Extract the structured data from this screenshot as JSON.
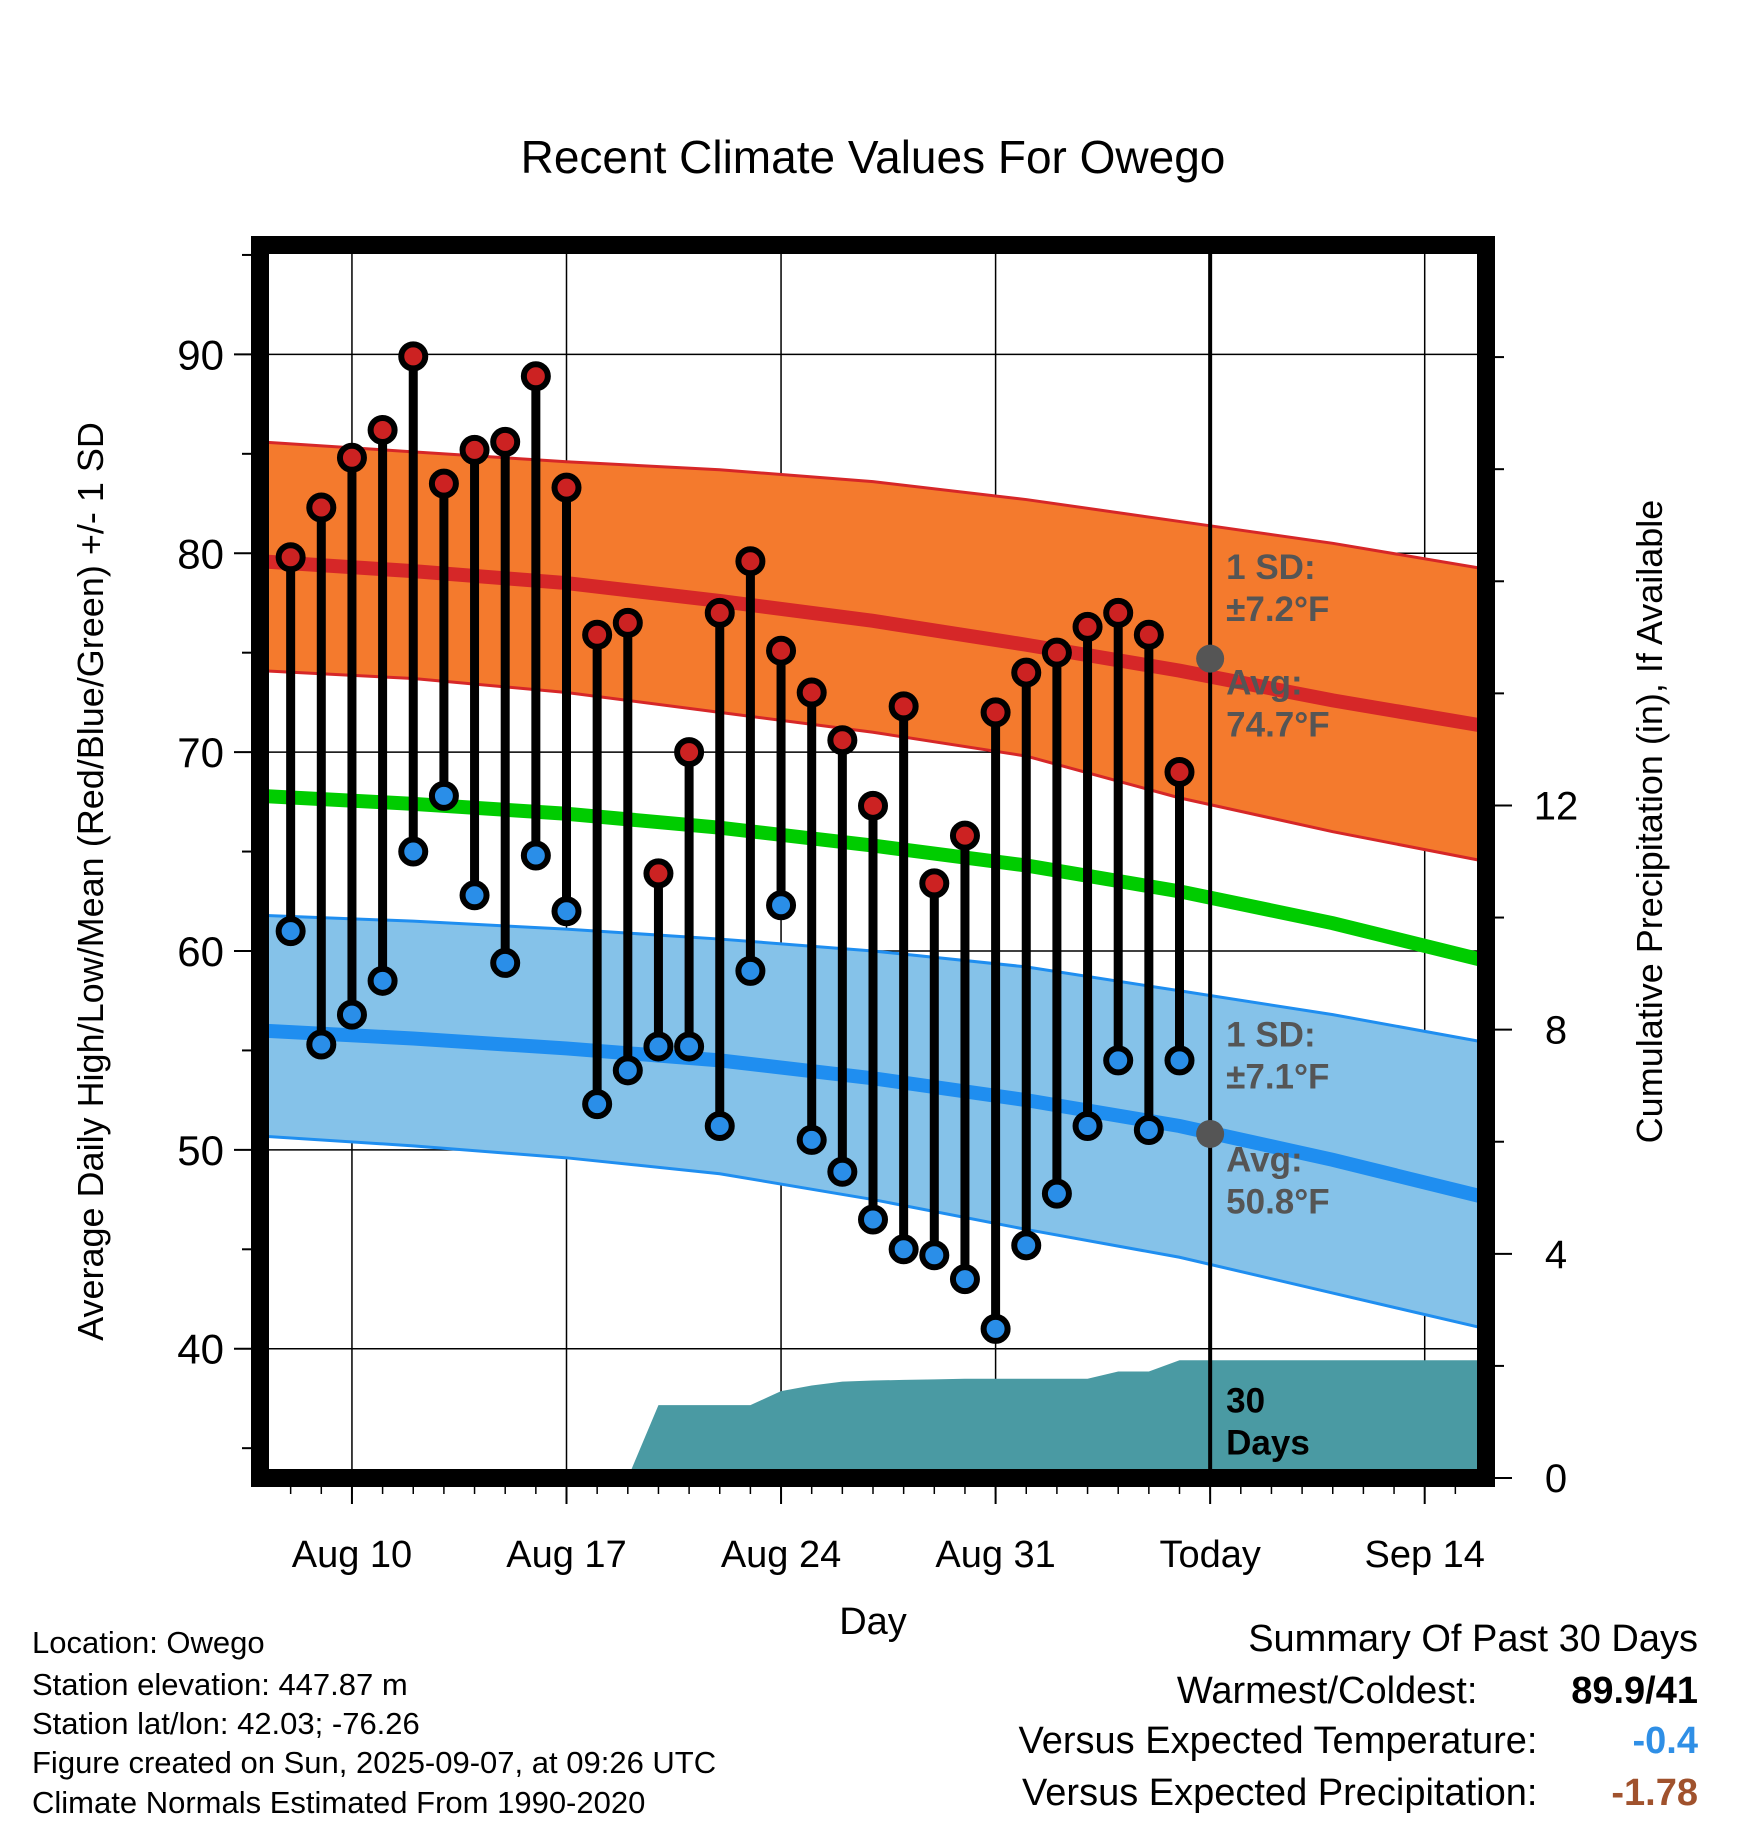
{
  "chart_data": {
    "type": "line",
    "title": "Recent Climate Values For Owego",
    "xlabel": "Day",
    "ylabel": "Average Daily High/Low/Mean (Red/Blue/Green) +/- 1 SD",
    "y2label": "Cumulative Precipitation (in), If Available",
    "x_ticks": [
      "Aug 10",
      "Aug 17",
      "Aug 24",
      "Aug 31",
      "Today",
      "Sep 14"
    ],
    "x_start": "Aug 7",
    "x_end": "Sep 16",
    "ylim": [
      33.5,
      95.5
    ],
    "yticks": [
      40,
      50,
      60,
      70,
      80,
      90
    ],
    "y2lim": [
      0,
      22
    ],
    "y2ticks": [
      0,
      4,
      8,
      12
    ],
    "days": [
      "Aug 8",
      "Aug 9",
      "Aug 10",
      "Aug 11",
      "Aug 12",
      "Aug 13",
      "Aug 14",
      "Aug 15",
      "Aug 16",
      "Aug 17",
      "Aug 18",
      "Aug 19",
      "Aug 20",
      "Aug 21",
      "Aug 22",
      "Aug 23",
      "Aug 24",
      "Aug 25",
      "Aug 26",
      "Aug 27",
      "Aug 28",
      "Aug 29",
      "Aug 30",
      "Aug 31",
      "Sep 1",
      "Sep 2",
      "Sep 3",
      "Sep 4",
      "Sep 5",
      "Sep 6"
    ],
    "high": [
      79.8,
      82.3,
      84.8,
      86.2,
      89.9,
      83.5,
      85.2,
      85.6,
      88.9,
      83.3,
      75.9,
      76.5,
      63.9,
      70.0,
      77.0,
      79.6,
      75.1,
      73.0,
      70.6,
      67.3,
      72.3,
      63.4,
      65.8,
      72.0,
      74.0,
      75.0,
      76.3,
      77.0,
      75.9,
      69.0
    ],
    "low": [
      61.0,
      55.3,
      56.8,
      58.5,
      65.0,
      67.8,
      62.8,
      59.4,
      64.8,
      62.0,
      52.3,
      54.0,
      55.2,
      55.2,
      51.2,
      59.0,
      62.3,
      50.5,
      48.9,
      46.5,
      45.0,
      44.7,
      43.5,
      41.0,
      45.2,
      47.8,
      51.2,
      54.5,
      51.0,
      54.5
    ],
    "normals": {
      "x": [
        "Aug 7",
        "Aug 12",
        "Aug 17",
        "Aug 22",
        "Aug 27",
        "Sep 1",
        "Sep 6",
        "Sep 11",
        "Sep 16"
      ],
      "high_avg": [
        79.6,
        79.1,
        78.5,
        77.6,
        76.6,
        75.4,
        74.1,
        72.6,
        71.3
      ],
      "high_upper": [
        85.6,
        85.1,
        84.6,
        84.2,
        83.6,
        82.7,
        81.6,
        80.5,
        79.2
      ],
      "high_lower": [
        74.1,
        73.7,
        73.0,
        72.0,
        71.0,
        69.8,
        67.7,
        66.0,
        64.5
      ],
      "mean": [
        67.8,
        67.4,
        66.9,
        66.2,
        65.3,
        64.3,
        63.0,
        61.4,
        59.5
      ],
      "low_avg": [
        56.0,
        55.6,
        55.1,
        54.5,
        53.6,
        52.5,
        51.2,
        49.5,
        47.6
      ],
      "low_upper": [
        61.8,
        61.5,
        61.1,
        60.6,
        60.0,
        59.2,
        58.0,
        56.8,
        55.4
      ],
      "low_lower": [
        50.7,
        50.2,
        49.6,
        48.8,
        47.5,
        46.0,
        44.6,
        42.8,
        41.0
      ]
    },
    "precip": {
      "x": [
        "Aug 19",
        "Aug 20",
        "Aug 22",
        "Aug 23",
        "Aug 24",
        "Aug 25",
        "Aug 26",
        "Aug 27",
        "Aug 28",
        "Aug 29",
        "Aug 30",
        "Aug 31",
        "Sep 1",
        "Sep 2",
        "Sep 3",
        "Sep 4",
        "Sep 5",
        "Sep 6",
        "Sep 16"
      ],
      "y": [
        0.0,
        1.3,
        1.3,
        1.3,
        1.55,
        1.65,
        1.72,
        1.74,
        1.75,
        1.76,
        1.77,
        1.77,
        1.77,
        1.77,
        1.77,
        1.9,
        1.9,
        2.1,
        2.1
      ]
    },
    "annotations": {
      "high_sd": [
        "1 SD:",
        "±7.2°F"
      ],
      "high_avg": [
        "Avg:",
        "74.7°F"
      ],
      "low_sd": [
        "1 SD:",
        "±7.1°F"
      ],
      "low_avg": [
        "Avg:",
        "50.8°F"
      ],
      "window": [
        "30",
        "Days"
      ],
      "high_avg_value": 74.7,
      "low_avg_value": 50.8
    },
    "colors": {
      "high_band": "#f47a2d",
      "high_line": "#d62728",
      "low_band": "#85c2e9",
      "low_line": "#1f8ef0",
      "mean_line": "#00cc00",
      "precip": "#4a9aa3",
      "high_dot": "#cc2222",
      "low_dot": "#2a8ee8",
      "annotation": "#555555"
    }
  },
  "info": {
    "location": "Location: Owego",
    "elevation": "Station elevation: 447.87 m",
    "latlon": "Station lat/lon: 42.03; -76.26",
    "created": "Figure created on Sun, 2025-09-07, at 09:26 UTC",
    "normals": "Climate Normals Estimated From 1990-2020"
  },
  "summary": {
    "title": "Summary Of Past 30 Days",
    "warm_cold_label": "Warmest/Coldest:",
    "warm_cold_value": "89.9/41",
    "temp_label": "Versus Expected Temperature:",
    "temp_value": "-0.4",
    "temp_color": "#2f8fe6",
    "precip_label": "Versus Expected Precipitation:",
    "precip_value": "-1.78",
    "precip_color": "#a0522d"
  }
}
